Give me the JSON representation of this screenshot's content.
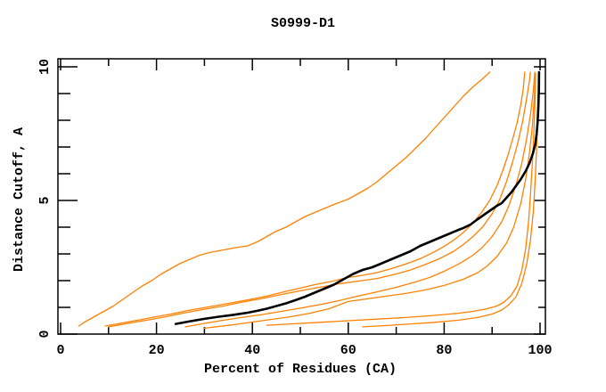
{
  "title": "S0999-D1",
  "colors": {
    "background": "#ffffff",
    "frame": "#000000",
    "orange_series": "#ff8000",
    "black_series": "#000000"
  },
  "chart_data": {
    "type": "line",
    "title": "S0999-D1",
    "xlabel": "Percent of Residues (CA)",
    "ylabel": "Distance Cutoff, A",
    "xlim": [
      0,
      100
    ],
    "ylim": [
      0,
      10
    ],
    "grid": false,
    "legend": null,
    "x_major_ticks": [
      0,
      20,
      40,
      60,
      80,
      100
    ],
    "x_major_tick_labels": [
      "0",
      "20",
      "40",
      "60",
      "80",
      "100"
    ],
    "x_minor_step": 10,
    "y_major_ticks": [
      0,
      5,
      10
    ],
    "y_major_tick_labels": [
      "0",
      "5",
      "10"
    ],
    "y_minor_step": 1,
    "series": [
      {
        "name": "orange-outlier-left",
        "color": "#ff8000",
        "width": 1.3,
        "points": [
          [
            3.8,
            0.3
          ],
          [
            5,
            0.45
          ],
          [
            7,
            0.65
          ],
          [
            9,
            0.85
          ],
          [
            11,
            1.05
          ],
          [
            13,
            1.3
          ],
          [
            15,
            1.55
          ],
          [
            17,
            1.8
          ],
          [
            19,
            2.0
          ],
          [
            21,
            2.25
          ],
          [
            23,
            2.45
          ],
          [
            25,
            2.65
          ],
          [
            27,
            2.8
          ],
          [
            29,
            2.95
          ],
          [
            31,
            3.05
          ],
          [
            34,
            3.15
          ],
          [
            37,
            3.25
          ],
          [
            39,
            3.3
          ],
          [
            41,
            3.45
          ],
          [
            43,
            3.65
          ],
          [
            45,
            3.85
          ],
          [
            47,
            4.0
          ],
          [
            49,
            4.2
          ],
          [
            51,
            4.4
          ],
          [
            53,
            4.55
          ],
          [
            55,
            4.7
          ],
          [
            57,
            4.85
          ],
          [
            60,
            5.05
          ],
          [
            62,
            5.25
          ],
          [
            64,
            5.45
          ],
          [
            66,
            5.7
          ],
          [
            68,
            6.0
          ],
          [
            70,
            6.3
          ],
          [
            72,
            6.6
          ],
          [
            74,
            6.95
          ],
          [
            76,
            7.3
          ],
          [
            78,
            7.7
          ],
          [
            80,
            8.1
          ],
          [
            82,
            8.5
          ],
          [
            84,
            8.9
          ],
          [
            86,
            9.25
          ],
          [
            88,
            9.55
          ],
          [
            89.5,
            9.8
          ]
        ]
      },
      {
        "name": "orange-bundle-1",
        "color": "#ff8000",
        "width": 1.3,
        "points": [
          [
            9.3,
            0.3
          ],
          [
            13,
            0.42
          ],
          [
            17,
            0.55
          ],
          [
            19,
            0.62
          ],
          [
            23,
            0.75
          ],
          [
            27,
            0.9
          ],
          [
            31,
            1.02
          ],
          [
            35,
            1.15
          ],
          [
            39,
            1.28
          ],
          [
            43,
            1.42
          ],
          [
            47,
            1.6
          ],
          [
            50,
            1.72
          ],
          [
            53,
            1.85
          ],
          [
            56,
            1.95
          ],
          [
            60,
            2.12
          ],
          [
            63,
            2.2
          ],
          [
            66,
            2.3
          ],
          [
            69,
            2.45
          ],
          [
            72,
            2.62
          ],
          [
            75,
            2.82
          ],
          [
            78,
            3.08
          ],
          [
            80,
            3.28
          ],
          [
            82,
            3.52
          ],
          [
            84,
            3.8
          ],
          [
            86,
            4.15
          ],
          [
            88,
            4.6
          ],
          [
            89.5,
            5.0
          ],
          [
            91,
            5.55
          ],
          [
            92.2,
            6.1
          ],
          [
            93.3,
            6.7
          ],
          [
            94.3,
            7.3
          ],
          [
            95.2,
            7.9
          ],
          [
            96,
            8.6
          ],
          [
            96.5,
            9.2
          ],
          [
            96.8,
            9.8
          ]
        ]
      },
      {
        "name": "orange-bundle-2",
        "color": "#ff8000",
        "width": 1.3,
        "points": [
          [
            10,
            0.27
          ],
          [
            14,
            0.4
          ],
          [
            18,
            0.52
          ],
          [
            22,
            0.65
          ],
          [
            26,
            0.8
          ],
          [
            30,
            0.93
          ],
          [
            34,
            1.05
          ],
          [
            38,
            1.2
          ],
          [
            42,
            1.33
          ],
          [
            46,
            1.48
          ],
          [
            50,
            1.62
          ],
          [
            54,
            1.75
          ],
          [
            58,
            1.88
          ],
          [
            62,
            1.98
          ],
          [
            66,
            2.08
          ],
          [
            70,
            2.25
          ],
          [
            73,
            2.4
          ],
          [
            76,
            2.6
          ],
          [
            79,
            2.82
          ],
          [
            82,
            3.1
          ],
          [
            84,
            3.35
          ],
          [
            86,
            3.65
          ],
          [
            88,
            4.0
          ],
          [
            90,
            4.5
          ],
          [
            91.5,
            5.0
          ],
          [
            93,
            5.7
          ],
          [
            94.2,
            6.4
          ],
          [
            95.3,
            7.1
          ],
          [
            96.3,
            7.9
          ],
          [
            97.2,
            8.8
          ],
          [
            97.8,
            9.5
          ],
          [
            98,
            9.8
          ]
        ]
      },
      {
        "name": "orange-bundle-3",
        "color": "#ff8000",
        "width": 1.3,
        "points": [
          [
            26,
            0.27
          ],
          [
            30,
            0.4
          ],
          [
            34,
            0.52
          ],
          [
            38,
            0.63
          ],
          [
            42,
            0.73
          ],
          [
            46,
            0.85
          ],
          [
            50,
            0.97
          ],
          [
            54,
            1.1
          ],
          [
            58,
            1.25
          ],
          [
            62,
            1.42
          ],
          [
            66,
            1.58
          ],
          [
            70,
            1.75
          ],
          [
            74,
            1.95
          ],
          [
            77,
            2.12
          ],
          [
            80,
            2.35
          ],
          [
            83,
            2.62
          ],
          [
            86,
            2.95
          ],
          [
            88,
            3.25
          ],
          [
            90,
            3.65
          ],
          [
            92,
            4.2
          ],
          [
            93.5,
            4.8
          ],
          [
            95,
            5.6
          ],
          [
            96.2,
            6.4
          ],
          [
            97.2,
            7.3
          ],
          [
            98,
            8.2
          ],
          [
            98.6,
            9.1
          ],
          [
            98.9,
            9.8
          ]
        ]
      },
      {
        "name": "orange-bundle-4",
        "color": "#ff8000",
        "width": 1.3,
        "points": [
          [
            30,
            0.22
          ],
          [
            36,
            0.35
          ],
          [
            42,
            0.5
          ],
          [
            48,
            0.65
          ],
          [
            52,
            0.78
          ],
          [
            56,
            0.95
          ],
          [
            60,
            1.22
          ],
          [
            64,
            1.32
          ],
          [
            68,
            1.42
          ],
          [
            72,
            1.52
          ],
          [
            76,
            1.65
          ],
          [
            80,
            1.82
          ],
          [
            84,
            2.05
          ],
          [
            87,
            2.3
          ],
          [
            89,
            2.55
          ],
          [
            91,
            2.9
          ],
          [
            93,
            3.4
          ],
          [
            94.5,
            4.0
          ],
          [
            96,
            4.9
          ],
          [
            97,
            5.8
          ],
          [
            97.8,
            6.8
          ],
          [
            98.4,
            7.8
          ],
          [
            98.8,
            8.8
          ],
          [
            99.05,
            9.75
          ]
        ]
      },
      {
        "name": "orange-late-riser-1",
        "color": "#ff8000",
        "width": 1.3,
        "points": [
          [
            43,
            0.33
          ],
          [
            48,
            0.38
          ],
          [
            54,
            0.44
          ],
          [
            60,
            0.5
          ],
          [
            66,
            0.56
          ],
          [
            72,
            0.62
          ],
          [
            78,
            0.7
          ],
          [
            83,
            0.78
          ],
          [
            86,
            0.85
          ],
          [
            89,
            0.95
          ],
          [
            91,
            1.05
          ],
          [
            92.5,
            1.2
          ],
          [
            94,
            1.45
          ],
          [
            95.2,
            1.8
          ],
          [
            96.2,
            2.4
          ],
          [
            97,
            3.2
          ],
          [
            97.6,
            4.2
          ],
          [
            98,
            5.2
          ],
          [
            98.4,
            6.4
          ],
          [
            98.7,
            7.5
          ],
          [
            98.9,
            8.5
          ],
          [
            99.0,
            9.3
          ],
          [
            99.05,
            9.7
          ]
        ]
      },
      {
        "name": "orange-late-riser-2",
        "color": "#ff8000",
        "width": 1.3,
        "points": [
          [
            63,
            0.27
          ],
          [
            68,
            0.32
          ],
          [
            73,
            0.38
          ],
          [
            78,
            0.44
          ],
          [
            83,
            0.52
          ],
          [
            87,
            0.62
          ],
          [
            90,
            0.75
          ],
          [
            92,
            0.9
          ],
          [
            93.5,
            1.1
          ],
          [
            95,
            1.4
          ],
          [
            96.2,
            1.9
          ],
          [
            97.2,
            2.6
          ],
          [
            98,
            3.5
          ],
          [
            98.6,
            4.6
          ],
          [
            99,
            5.8
          ],
          [
            99.3,
            7.0
          ],
          [
            99.5,
            8.2
          ],
          [
            99.6,
            9.0
          ],
          [
            99.65,
            9.7
          ]
        ]
      },
      {
        "name": "black-highlight",
        "color": "#000000",
        "width": 2.6,
        "points": [
          [
            24,
            0.38
          ],
          [
            27,
            0.48
          ],
          [
            30,
            0.57
          ],
          [
            33,
            0.65
          ],
          [
            36,
            0.72
          ],
          [
            39,
            0.8
          ],
          [
            41,
            0.87
          ],
          [
            43,
            0.95
          ],
          [
            45,
            1.05
          ],
          [
            47,
            1.15
          ],
          [
            49,
            1.27
          ],
          [
            51,
            1.4
          ],
          [
            53,
            1.55
          ],
          [
            55,
            1.7
          ],
          [
            57,
            1.85
          ],
          [
            59,
            2.05
          ],
          [
            61,
            2.25
          ],
          [
            63,
            2.4
          ],
          [
            65,
            2.5
          ],
          [
            67,
            2.65
          ],
          [
            69,
            2.8
          ],
          [
            71,
            2.95
          ],
          [
            73,
            3.1
          ],
          [
            75,
            3.3
          ],
          [
            77,
            3.45
          ],
          [
            79,
            3.6
          ],
          [
            81,
            3.75
          ],
          [
            83,
            3.9
          ],
          [
            84,
            3.97
          ],
          [
            85.5,
            4.1
          ],
          [
            87,
            4.3
          ],
          [
            89,
            4.55
          ],
          [
            91,
            4.8
          ],
          [
            92,
            4.9
          ],
          [
            93,
            5.1
          ],
          [
            94,
            5.3
          ],
          [
            95,
            5.55
          ],
          [
            96,
            5.8
          ],
          [
            97,
            6.1
          ],
          [
            97.8,
            6.4
          ],
          [
            98.5,
            6.75
          ],
          [
            99,
            7.1
          ],
          [
            99.3,
            7.5
          ],
          [
            99.5,
            7.95
          ],
          [
            99.65,
            8.5
          ],
          [
            99.75,
            9.1
          ],
          [
            99.8,
            9.8
          ]
        ]
      }
    ]
  }
}
